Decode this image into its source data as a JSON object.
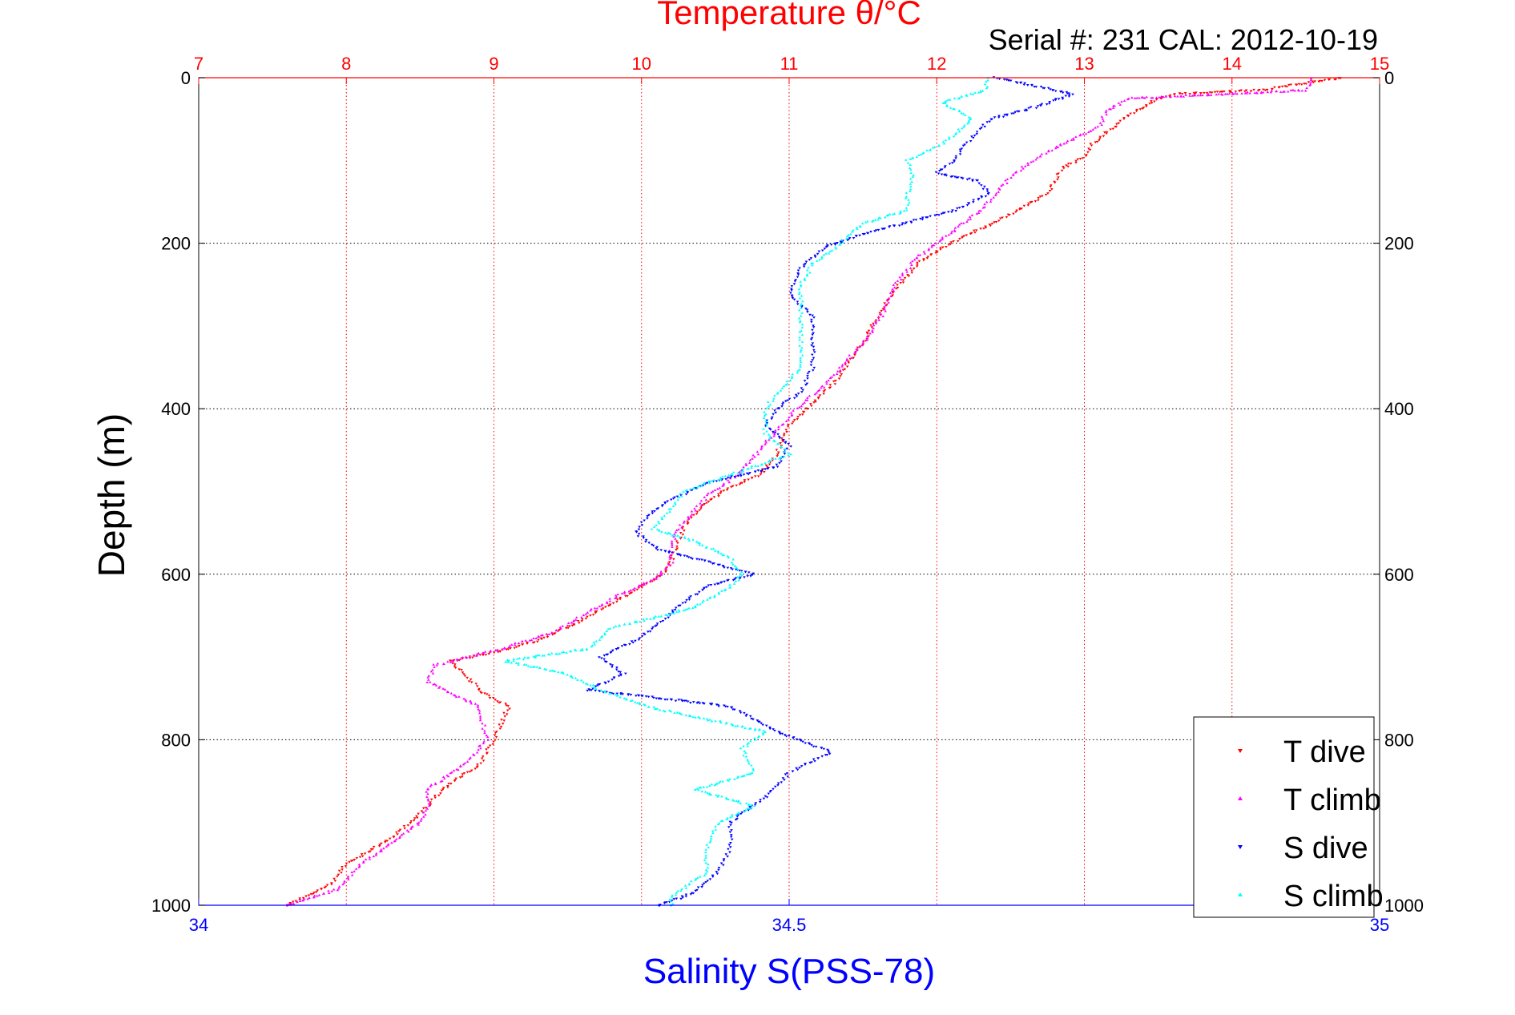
{
  "chart_data": {
    "type": "scatter",
    "title": "Temperature θ/°C",
    "subtitle": "Serial #: 231  CAL: 2012-10-19",
    "ylabel": "Depth (m)",
    "xlabel_bottom": "Salinity S(PSS-78)",
    "ylim": [
      1000,
      0
    ],
    "yticks": [
      0,
      200,
      400,
      600,
      800,
      1000
    ],
    "top_axis": {
      "label": "Temperature θ/°C",
      "range": [
        7,
        15
      ],
      "ticks": [
        7,
        8,
        9,
        10,
        11,
        12,
        13,
        14,
        15
      ],
      "color": "#ff0000"
    },
    "bottom_axis": {
      "label": "Salinity S(PSS-78)",
      "range": [
        34,
        35
      ],
      "ticks": [
        34,
        34.5,
        35
      ],
      "tick_labels": [
        "34",
        "34.5",
        "35"
      ],
      "color": "#0000ff"
    },
    "grid": true,
    "legend": {
      "placement": "bottom-right",
      "entries": [
        "T dive",
        "T climb",
        "S dive",
        "S climb"
      ]
    },
    "series": [
      {
        "name": "T dive",
        "axis": "temperature",
        "color": "#ff0000",
        "marker": "triangle-down",
        "points": [
          [
            0,
            14.75
          ],
          [
            15,
            14.2
          ],
          [
            20,
            13.6
          ],
          [
            30,
            13.45
          ],
          [
            45,
            13.3
          ],
          [
            60,
            13.2
          ],
          [
            80,
            13.05
          ],
          [
            95,
            13.0
          ],
          [
            110,
            12.85
          ],
          [
            125,
            12.8
          ],
          [
            140,
            12.75
          ],
          [
            160,
            12.55
          ],
          [
            175,
            12.4
          ],
          [
            190,
            12.2
          ],
          [
            205,
            12.05
          ],
          [
            220,
            11.9
          ],
          [
            240,
            11.8
          ],
          [
            260,
            11.7
          ],
          [
            290,
            11.6
          ],
          [
            320,
            11.5
          ],
          [
            345,
            11.4
          ],
          [
            370,
            11.3
          ],
          [
            395,
            11.15
          ],
          [
            420,
            11.0
          ],
          [
            440,
            10.95
          ],
          [
            460,
            10.9
          ],
          [
            480,
            10.8
          ],
          [
            500,
            10.55
          ],
          [
            520,
            10.4
          ],
          [
            540,
            10.3
          ],
          [
            560,
            10.25
          ],
          [
            585,
            10.2
          ],
          [
            600,
            10.15
          ],
          [
            620,
            9.95
          ],
          [
            640,
            9.75
          ],
          [
            660,
            9.55
          ],
          [
            680,
            9.3
          ],
          [
            695,
            9.0
          ],
          [
            705,
            8.7
          ],
          [
            720,
            8.8
          ],
          [
            740,
            8.9
          ],
          [
            760,
            9.1
          ],
          [
            780,
            9.05
          ],
          [
            800,
            9.0
          ],
          [
            830,
            8.9
          ],
          [
            860,
            8.65
          ],
          [
            890,
            8.5
          ],
          [
            920,
            8.3
          ],
          [
            950,
            8.0
          ],
          [
            975,
            7.9
          ],
          [
            1000,
            7.6
          ]
        ]
      },
      {
        "name": "T climb",
        "axis": "temperature",
        "color": "#ff00ff",
        "marker": "triangle-up",
        "points": [
          [
            0,
            14.55
          ],
          [
            15,
            14.5
          ],
          [
            25,
            13.3
          ],
          [
            40,
            13.15
          ],
          [
            60,
            13.1
          ],
          [
            80,
            12.85
          ],
          [
            100,
            12.65
          ],
          [
            120,
            12.5
          ],
          [
            140,
            12.4
          ],
          [
            160,
            12.3
          ],
          [
            180,
            12.15
          ],
          [
            200,
            12.0
          ],
          [
            220,
            11.85
          ],
          [
            250,
            11.72
          ],
          [
            280,
            11.65
          ],
          [
            310,
            11.55
          ],
          [
            340,
            11.4
          ],
          [
            370,
            11.25
          ],
          [
            400,
            11.05
          ],
          [
            420,
            10.95
          ],
          [
            450,
            10.8
          ],
          [
            480,
            10.65
          ],
          [
            505,
            10.45
          ],
          [
            525,
            10.35
          ],
          [
            545,
            10.25
          ],
          [
            565,
            10.2
          ],
          [
            585,
            10.2
          ],
          [
            605,
            10.1
          ],
          [
            625,
            9.85
          ],
          [
            650,
            9.6
          ],
          [
            670,
            9.4
          ],
          [
            690,
            9.05
          ],
          [
            710,
            8.6
          ],
          [
            730,
            8.55
          ],
          [
            760,
            8.9
          ],
          [
            800,
            8.95
          ],
          [
            830,
            8.8
          ],
          [
            860,
            8.55
          ],
          [
            880,
            8.55
          ],
          [
            900,
            8.5
          ],
          [
            920,
            8.35
          ],
          [
            950,
            8.1
          ],
          [
            980,
            7.95
          ],
          [
            1000,
            7.6
          ]
        ]
      },
      {
        "name": "S dive",
        "axis": "salinity",
        "color": "#0000ff",
        "marker": "triangle-down",
        "points": [
          [
            0,
            34.675
          ],
          [
            20,
            34.74
          ],
          [
            35,
            34.71
          ],
          [
            50,
            34.67
          ],
          [
            80,
            34.65
          ],
          [
            100,
            34.64
          ],
          [
            115,
            34.625
          ],
          [
            125,
            34.66
          ],
          [
            140,
            34.67
          ],
          [
            160,
            34.64
          ],
          [
            175,
            34.6
          ],
          [
            190,
            34.56
          ],
          [
            205,
            34.53
          ],
          [
            230,
            34.51
          ],
          [
            260,
            34.5
          ],
          [
            290,
            34.52
          ],
          [
            320,
            34.52
          ],
          [
            350,
            34.52
          ],
          [
            380,
            34.51
          ],
          [
            400,
            34.49
          ],
          [
            420,
            34.48
          ],
          [
            445,
            34.5
          ],
          [
            470,
            34.49
          ],
          [
            490,
            34.43
          ],
          [
            510,
            34.4
          ],
          [
            530,
            34.38
          ],
          [
            550,
            34.37
          ],
          [
            570,
            34.39
          ],
          [
            600,
            34.47
          ],
          [
            615,
            34.43
          ],
          [
            635,
            34.41
          ],
          [
            660,
            34.39
          ],
          [
            680,
            34.37
          ],
          [
            700,
            34.34
          ],
          [
            720,
            34.36
          ],
          [
            740,
            34.33
          ],
          [
            760,
            34.45
          ],
          [
            790,
            34.49
          ],
          [
            815,
            34.535
          ],
          [
            840,
            34.5
          ],
          [
            870,
            34.48
          ],
          [
            900,
            34.45
          ],
          [
            930,
            34.45
          ],
          [
            960,
            34.44
          ],
          [
            985,
            34.42
          ],
          [
            1000,
            34.39
          ]
        ]
      },
      {
        "name": "S climb",
        "axis": "salinity",
        "color": "#00ffff",
        "marker": "triangle-up",
        "points": [
          [
            0,
            34.67
          ],
          [
            15,
            34.665
          ],
          [
            30,
            34.63
          ],
          [
            50,
            34.655
          ],
          [
            80,
            34.63
          ],
          [
            100,
            34.6
          ],
          [
            120,
            34.605
          ],
          [
            140,
            34.6
          ],
          [
            160,
            34.6
          ],
          [
            175,
            34.565
          ],
          [
            190,
            34.55
          ],
          [
            205,
            34.54
          ],
          [
            225,
            34.52
          ],
          [
            250,
            34.51
          ],
          [
            290,
            34.51
          ],
          [
            320,
            34.51
          ],
          [
            350,
            34.51
          ],
          [
            380,
            34.49
          ],
          [
            400,
            34.48
          ],
          [
            430,
            34.48
          ],
          [
            455,
            34.5
          ],
          [
            475,
            34.46
          ],
          [
            500,
            34.41
          ],
          [
            520,
            34.4
          ],
          [
            545,
            34.385
          ],
          [
            560,
            34.42
          ],
          [
            580,
            34.45
          ],
          [
            600,
            34.46
          ],
          [
            615,
            34.45
          ],
          [
            640,
            34.42
          ],
          [
            665,
            34.35
          ],
          [
            690,
            34.33
          ],
          [
            705,
            34.26
          ],
          [
            720,
            34.31
          ],
          [
            740,
            34.34
          ],
          [
            760,
            34.38
          ],
          [
            790,
            34.48
          ],
          [
            810,
            34.46
          ],
          [
            840,
            34.47
          ],
          [
            860,
            34.42
          ],
          [
            880,
            34.47
          ],
          [
            900,
            34.44
          ],
          [
            930,
            34.43
          ],
          [
            960,
            34.43
          ],
          [
            990,
            34.4
          ],
          [
            1000,
            34.4
          ]
        ]
      }
    ]
  }
}
